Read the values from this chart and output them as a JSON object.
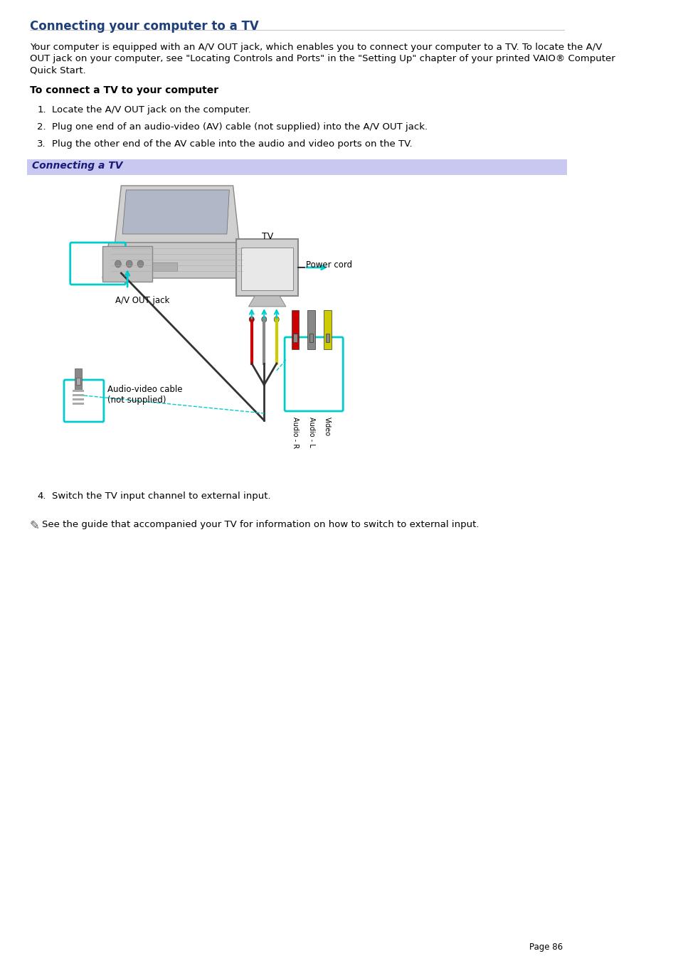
{
  "title": "Connecting your computer to a TV",
  "title_color": "#1f3f7a",
  "bg_color": "#ffffff",
  "body_text": "Your computer is equipped with an A/V OUT jack, which enables you to connect your computer to a TV. To locate the A/V\nOUT jack on your computer, see \"Locating Controls and Ports\" in the \"Setting Up\" chapter of your printed VAIO® Computer\nQuick Start.",
  "bold_subheading": "To connect a TV to your computer",
  "steps": [
    "Locate the A/V OUT jack on the computer.",
    "Plug one end of an audio-video (AV) cable (not supplied) into the A/V OUT jack.",
    "Plug the other end of the AV cable into the audio and video ports on the TV."
  ],
  "callout_text": "Connecting a TV",
  "callout_bg": "#c8c8f0",
  "step4_text": "Switch the TV input channel to external input.",
  "note_text": "See the guide that accompanied your TV for information on how to switch to external input.",
  "page_number": "Page 86",
  "font_family": "DejaVu Sans",
  "title_fontsize": 11,
  "body_fontsize": 9.5,
  "step_fontsize": 9.5
}
